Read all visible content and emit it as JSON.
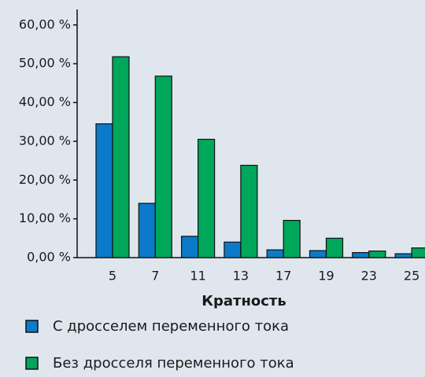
{
  "chart_data": {
    "type": "bar",
    "x_label": "Кратность",
    "categories": [
      "5",
      "7",
      "11",
      "13",
      "17",
      "19",
      "23",
      "25"
    ],
    "series": [
      {
        "name": "С дросселем переменного тока",
        "color": "#0b7bc9",
        "values": [
          34.5,
          14,
          5.5,
          4,
          2,
          1.8,
          1.3,
          1.0
        ]
      },
      {
        "name": "Без дросселя переменного тока",
        "color": "#00a659",
        "values": [
          51.8,
          46.8,
          30.5,
          23.8,
          9.6,
          5.0,
          1.7,
          2.5
        ]
      }
    ],
    "ylim": [
      0,
      64
    ],
    "yticks": [
      {
        "value": 0,
        "label": "0,00 %"
      },
      {
        "value": 10,
        "label": "10,00 %"
      },
      {
        "value": 20,
        "label": "20,00 %"
      },
      {
        "value": 30,
        "label": "30,00 %"
      },
      {
        "value": 40,
        "label": "40,00 %"
      },
      {
        "value": 50,
        "label": "50,00 %"
      },
      {
        "value": 60,
        "label": "60,00 %"
      }
    ],
    "grid": false
  }
}
